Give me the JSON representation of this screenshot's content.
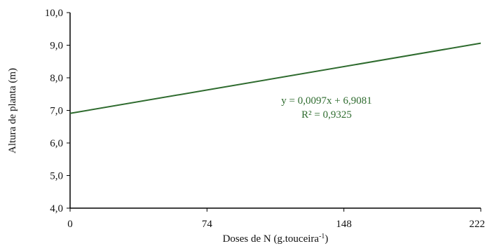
{
  "chart_data": {
    "type": "line",
    "title": "",
    "xlabel": "Doses de N (g.touceira",
    "xlabel_sup": "-1",
    "xlabel_close": ")",
    "ylabel": "Altura de planta (m)",
    "x_ticks": [
      0,
      74,
      148,
      222
    ],
    "x_tick_labels": [
      "0",
      "74",
      "148",
      "222"
    ],
    "y_ticks": [
      4.0,
      5.0,
      6.0,
      7.0,
      8.0,
      9.0,
      10.0
    ],
    "y_tick_labels": [
      "4,0",
      "5,0",
      "6,0",
      "7,0",
      "8,0",
      "9,0",
      "10,0"
    ],
    "xlim": [
      0,
      222
    ],
    "ylim": [
      4.0,
      10.0
    ],
    "grid": false,
    "legend": "none",
    "series": [
      {
        "x": [
          0,
          222
        ],
        "y": [
          6.9081,
          9.0615
        ],
        "color": "#2e6b2e"
      }
    ],
    "annotations": {
      "equation": "y = 0,0097x + 6,9081",
      "r_squared": "R² = 0,9325",
      "color": "#2e6b2e"
    }
  }
}
